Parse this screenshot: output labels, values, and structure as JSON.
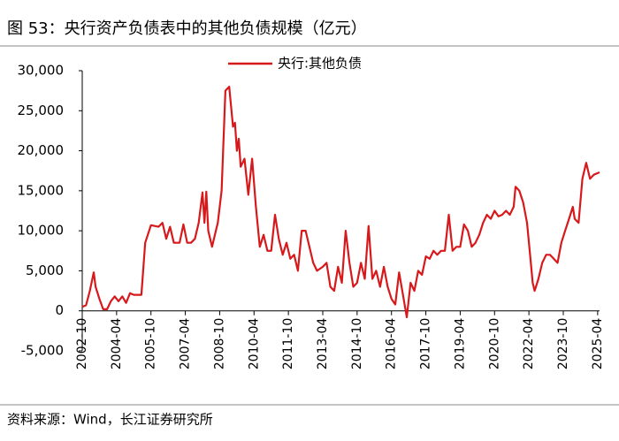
{
  "chart_data": {
    "type": "line",
    "title": "图 53：央行资产负债表中的其他负债规模（亿元）",
    "source": "资料来源：Wind，长江证券研究所",
    "series": [
      {
        "name": "央行:其他负债",
        "color": "#d7191c",
        "x": [
          "2002-10",
          "2002-12",
          "2003-02",
          "2003-04",
          "2003-05",
          "2003-07",
          "2003-09",
          "2003-11",
          "2004-01",
          "2004-03",
          "2004-05",
          "2004-07",
          "2004-09",
          "2004-11",
          "2005-01",
          "2005-05",
          "2005-07",
          "2005-10",
          "2006-02",
          "2006-04",
          "2006-06",
          "2006-08",
          "2006-10",
          "2007-01",
          "2007-03",
          "2007-05",
          "2007-07",
          "2007-09",
          "2007-11",
          "2008-01",
          "2008-02",
          "2008-03",
          "2008-04",
          "2008-06",
          "2008-08",
          "2008-09",
          "2008-11",
          "2009-01",
          "2009-03",
          "2009-05",
          "2009-06",
          "2009-07",
          "2009-08",
          "2009-09",
          "2009-11",
          "2010-01",
          "2010-03",
          "2010-05",
          "2010-07",
          "2010-09",
          "2010-11",
          "2011-01",
          "2011-03",
          "2011-05",
          "2011-07",
          "2011-09",
          "2011-11",
          "2012-01",
          "2012-03",
          "2012-05",
          "2012-07",
          "2012-09",
          "2012-11",
          "2013-01",
          "2013-04",
          "2013-06",
          "2013-08",
          "2013-10",
          "2013-12",
          "2014-02",
          "2014-04",
          "2014-06",
          "2014-08",
          "2014-10",
          "2014-12",
          "2015-02",
          "2015-04",
          "2015-06",
          "2015-08",
          "2015-10",
          "2015-12",
          "2016-02",
          "2016-04",
          "2016-06",
          "2016-08",
          "2016-10",
          "2016-12",
          "2017-02",
          "2017-04",
          "2017-06",
          "2017-08",
          "2017-10",
          "2017-12",
          "2018-02",
          "2018-04",
          "2018-06",
          "2018-08",
          "2018-10",
          "2018-12",
          "2019-02",
          "2019-04",
          "2019-06",
          "2019-08",
          "2019-10",
          "2019-12",
          "2020-02",
          "2020-04",
          "2020-06",
          "2020-08",
          "2020-10",
          "2020-12",
          "2021-02",
          "2021-04",
          "2021-06",
          "2021-08",
          "2021-09",
          "2021-11",
          "2022-01",
          "2022-03",
          "2022-05",
          "2022-06",
          "2022-07",
          "2022-09",
          "2022-11",
          "2023-01",
          "2023-03",
          "2023-05",
          "2023-07",
          "2023-09",
          "2023-11",
          "2024-01",
          "2024-03",
          "2024-04",
          "2024-06",
          "2024-08",
          "2024-10",
          "2024-12",
          "2025-02",
          "2025-05"
        ],
        "values": [
          500,
          700,
          2500,
          4800,
          3000,
          1500,
          200,
          200,
          1200,
          1800,
          1200,
          1800,
          1000,
          2200,
          2000,
          2000,
          8500,
          10700,
          10500,
          11000,
          9000,
          10500,
          8500,
          8500,
          10800,
          8500,
          8500,
          9000,
          11000,
          14800,
          11000,
          14900,
          10000,
          8000,
          10000,
          11000,
          15000,
          27500,
          28000,
          23000,
          23500,
          20000,
          21500,
          18000,
          19000,
          14500,
          19000,
          13000,
          8000,
          9500,
          7500,
          7500,
          12000,
          9000,
          7000,
          8500,
          6500,
          7000,
          5000,
          10000,
          10000,
          8000,
          6000,
          5000,
          5500,
          6000,
          3000,
          2500,
          5500,
          3500,
          10000,
          6000,
          3000,
          3500,
          6000,
          4000,
          10600,
          4000,
          5000,
          3000,
          5500,
          3000,
          1500,
          800,
          4800,
          2000,
          -800,
          3500,
          2500,
          5000,
          4500,
          6800,
          6500,
          7500,
          7000,
          7500,
          7500,
          12000,
          7500,
          8000,
          8000,
          10800,
          10000,
          8000,
          8500,
          9500,
          11000,
          12000,
          11500,
          12500,
          11800,
          12000,
          12500,
          12000,
          13000,
          15500,
          15000,
          13500,
          11000,
          6000,
          3500,
          2500,
          4000,
          6000,
          7000,
          7000,
          6500,
          6000,
          8500,
          10000,
          11500,
          13000,
          11500,
          11000,
          16500,
          18500,
          16500,
          17000,
          17300
        ]
      }
    ],
    "xlim": [
      "2002-10",
      "2025-05"
    ],
    "xticks": [
      "2002-10",
      "2004-04",
      "2005-10",
      "2007-04",
      "2008-10",
      "2010-04",
      "2011-10",
      "2013-04",
      "2014-10",
      "2016-04",
      "2017-10",
      "2019-04",
      "2020-10",
      "2022-04",
      "2023-10",
      "2025-04"
    ],
    "ylim": [
      -5000,
      30000
    ],
    "yticks": [
      {
        "value": -5000,
        "label": "-5,000"
      },
      0,
      {
        "value": 5000,
        "label": "5,000"
      },
      {
        "value": 10000,
        "label": "10,000"
      },
      {
        "value": 15000,
        "label": "15,000"
      },
      {
        "value": 20000,
        "label": "20,000"
      },
      {
        "value": 25000,
        "label": "25,000"
      },
      {
        "value": 30000,
        "label": "30,000"
      }
    ],
    "legend": "top"
  }
}
